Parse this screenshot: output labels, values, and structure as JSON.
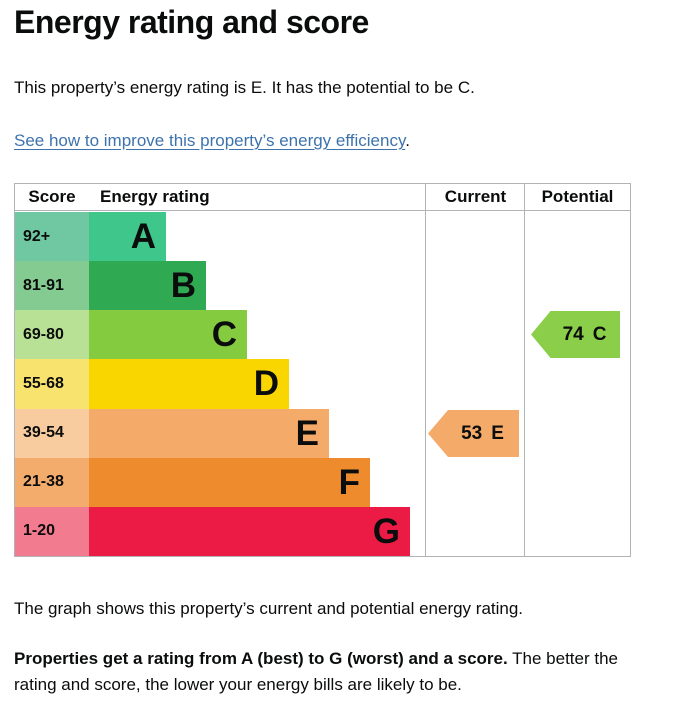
{
  "page": {
    "title": "Energy rating and score",
    "intro": "This property’s energy rating is E. It has the potential to be C.",
    "link_text": "See how to improve this property’s energy efficiency",
    "link_suffix": ".",
    "caption": "The graph shows this property’s current and potential energy rating.",
    "footer_bold": "Properties get a rating from A (best) to G (worst) and a score.",
    "footer_rest": "The better the rating and score, the lower your energy bills are likely to be."
  },
  "colors": {
    "text": "#0b0c0c",
    "link": "#3d73ad",
    "border": "#b1b4b6"
  },
  "chart_data": {
    "type": "bar",
    "title": "Energy rating and score",
    "headers": {
      "score": "Score",
      "rating": "Energy rating",
      "current": "Current",
      "potential": "Potential"
    },
    "bands": [
      {
        "letter": "A",
        "score_range": "92+",
        "band_color": "#3fc68b",
        "score_color": "#6fc8a2"
      },
      {
        "letter": "B",
        "score_range": "81-91",
        "band_color": "#2fa952",
        "score_color": "#83cb90"
      },
      {
        "letter": "C",
        "score_range": "69-80",
        "band_color": "#85cb40",
        "score_color": "#b9e195"
      },
      {
        "letter": "D",
        "score_range": "55-68",
        "band_color": "#f9d600",
        "score_color": "#f8e36e"
      },
      {
        "letter": "E",
        "score_range": "39-54",
        "band_color": "#f4aa68",
        "score_color": "#f9cc9f"
      },
      {
        "letter": "F",
        "score_range": "21-38",
        "band_color": "#ee8b2d",
        "score_color": "#f4ac6d"
      },
      {
        "letter": "G",
        "score_range": "1-20",
        "band_color": "#eb1b45",
        "score_color": "#f27b8f"
      }
    ],
    "current": {
      "score": "53",
      "band": "E",
      "color": "#f4aa68"
    },
    "potential": {
      "score": "74",
      "band": "C",
      "color": "#8bce4a"
    }
  }
}
